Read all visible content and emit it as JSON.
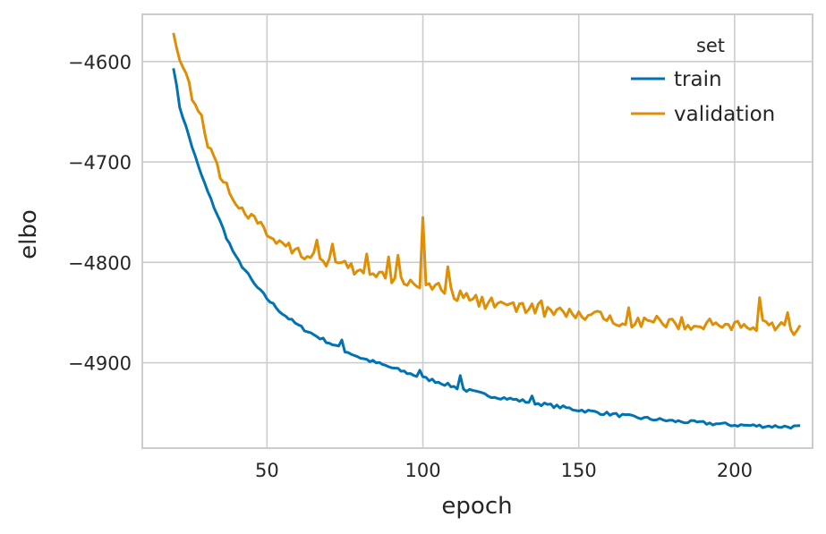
{
  "chart_data": {
    "type": "line",
    "xlabel": "epoch",
    "ylabel": "elbo",
    "xlim": [
      10,
      225
    ],
    "ylim": [
      -4985,
      -4553
    ],
    "xticks": [
      50,
      100,
      150,
      200
    ],
    "yticks": [
      -4600,
      -4700,
      -4800,
      -4900
    ],
    "xtick_labels": [
      "50",
      "100",
      "150",
      "200"
    ],
    "ytick_labels": [
      "−4600",
      "−4700",
      "−4800",
      "−4900"
    ],
    "grid": true,
    "legend_title": "set",
    "legend_position": "top-right",
    "series": [
      {
        "name": "train",
        "color": "#0173b2",
        "x_start": 20,
        "x_end": 221,
        "anchors": [
          [
            20,
            -4605
          ],
          [
            22,
            -4645
          ],
          [
            25,
            -4675
          ],
          [
            28,
            -4705
          ],
          [
            31,
            -4730
          ],
          [
            34,
            -4752
          ],
          [
            37,
            -4775
          ],
          [
            40,
            -4795
          ],
          [
            43,
            -4808
          ],
          [
            46,
            -4822
          ],
          [
            50,
            -4836
          ],
          [
            55,
            -4851
          ],
          [
            60,
            -4863
          ],
          [
            65,
            -4872
          ],
          [
            70,
            -4880
          ],
          [
            75,
            -4888
          ],
          [
            80,
            -4895
          ],
          [
            85,
            -4900
          ],
          [
            90,
            -4905
          ],
          [
            95,
            -4910
          ],
          [
            100,
            -4915
          ],
          [
            105,
            -4919
          ],
          [
            110,
            -4924
          ],
          [
            115,
            -4928
          ],
          [
            120,
            -4932
          ],
          [
            130,
            -4937
          ],
          [
            140,
            -4942
          ],
          [
            150,
            -4947
          ],
          [
            160,
            -4951
          ],
          [
            170,
            -4955
          ],
          [
            180,
            -4958
          ],
          [
            190,
            -4960
          ],
          [
            200,
            -4962
          ],
          [
            210,
            -4963
          ],
          [
            221,
            -4964
          ]
        ],
        "noise": 1.8,
        "spikes": [
          [
            74,
            9
          ],
          [
            99,
            7
          ],
          [
            112,
            13
          ],
          [
            135,
            5
          ]
        ]
      },
      {
        "name": "validation",
        "color": "#de8f05",
        "x_start": 20,
        "x_end": 221,
        "anchors": [
          [
            20,
            -4565
          ],
          [
            22,
            -4600
          ],
          [
            24,
            -4612
          ],
          [
            26,
            -4633
          ],
          [
            28,
            -4648
          ],
          [
            30,
            -4670
          ],
          [
            32,
            -4690
          ],
          [
            34,
            -4705
          ],
          [
            36,
            -4720
          ],
          [
            38,
            -4730
          ],
          [
            40,
            -4737
          ],
          [
            43,
            -4752
          ],
          [
            46,
            -4760
          ],
          [
            50,
            -4771
          ],
          [
            55,
            -4780
          ],
          [
            60,
            -4788
          ],
          [
            65,
            -4795
          ],
          [
            70,
            -4800
          ],
          [
            75,
            -4805
          ],
          [
            80,
            -4810
          ],
          [
            90,
            -4815
          ],
          [
            100,
            -4822
          ],
          [
            110,
            -4832
          ],
          [
            120,
            -4840
          ],
          [
            130,
            -4845
          ],
          [
            140,
            -4849
          ],
          [
            150,
            -4853
          ],
          [
            160,
            -4856
          ],
          [
            170,
            -4859
          ],
          [
            180,
            -4860
          ],
          [
            190,
            -4862
          ],
          [
            200,
            -4863
          ],
          [
            210,
            -4864
          ],
          [
            221,
            -4867
          ]
        ],
        "noise": 6.5,
        "spikes": [
          [
            66,
            22
          ],
          [
            71,
            18
          ],
          [
            82,
            16
          ],
          [
            89,
            14
          ],
          [
            92,
            18
          ],
          [
            100,
            68
          ],
          [
            108,
            20
          ],
          [
            122,
            12
          ],
          [
            138,
            14
          ],
          [
            166,
            15
          ],
          [
            208,
            35
          ],
          [
            217,
            18
          ]
        ]
      }
    ]
  }
}
